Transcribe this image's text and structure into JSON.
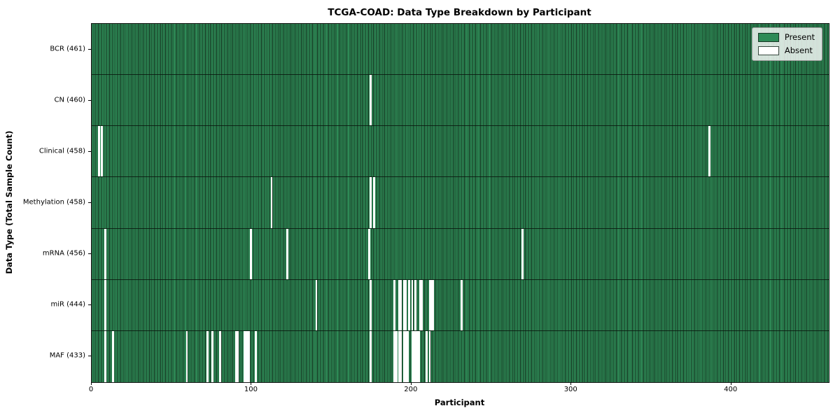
{
  "title": "TCGA-COAD: Data Type Breakdown by Participant",
  "xlabel": "Participant",
  "ylabel": "Data Type (Total Sample Count)",
  "legend": {
    "present_label": "Present",
    "absent_label": "Absent",
    "position": "upper right"
  },
  "colors": {
    "present": "#2E8B57",
    "bar_edge": "#14301E",
    "absent": "#FFFFFF",
    "legend_face": "rgba(255,255,255,0.8)"
  },
  "chart_data": {
    "type": "heatmap",
    "orientation": "rows are data types, columns are participants",
    "n_participants": 461,
    "x_ticks": [
      0,
      100,
      200,
      300,
      400
    ],
    "grid": false,
    "legend_position": "upper right",
    "rows": [
      {
        "name": "BCR",
        "label": "BCR (461)",
        "present_count": 461,
        "absent_participants": []
      },
      {
        "name": "CN",
        "label": "CN (460)",
        "present_count": 460,
        "absent_participants": [
          174
        ]
      },
      {
        "name": "Clinical",
        "label": "Clinical (458)",
        "present_count": 458,
        "absent_participants": [
          4,
          6,
          386
        ]
      },
      {
        "name": "Methylation",
        "label": "Methylation (458)",
        "present_count": 458,
        "absent_participants": [
          112,
          174,
          176
        ]
      },
      {
        "name": "mRNA",
        "label": "mRNA (456)",
        "present_count": 456,
        "absent_participants": [
          8,
          99,
          122,
          173,
          269
        ]
      },
      {
        "name": "miR",
        "label": "miR (444)",
        "present_count": 444,
        "absent_participants": [
          8,
          140,
          174,
          189,
          192,
          193,
          195,
          196,
          198,
          200,
          202,
          205,
          206,
          211,
          212,
          213,
          231
        ]
      },
      {
        "name": "MAF",
        "label": "MAF (433)",
        "present_count": 433,
        "absent_participants": [
          8,
          13,
          59,
          72,
          75,
          80,
          90,
          91,
          95,
          96,
          97,
          98,
          102,
          174,
          189,
          190,
          192,
          193,
          195,
          196,
          197,
          200,
          201,
          202,
          203,
          204,
          209,
          211
        ]
      }
    ]
  }
}
